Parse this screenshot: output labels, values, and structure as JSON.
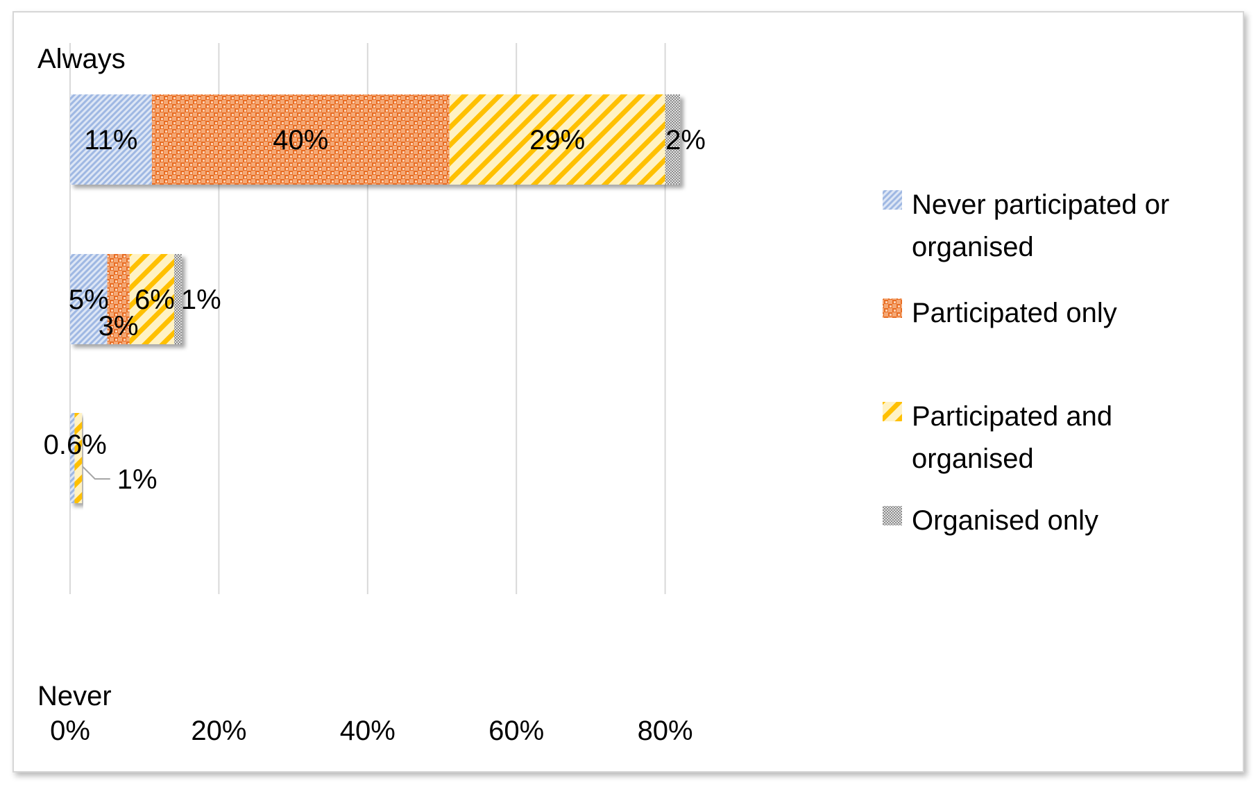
{
  "chart_data": {
    "type": "bar",
    "orientation": "horizontal",
    "stacked": true,
    "categories": [
      "Always",
      "",
      "",
      "Never"
    ],
    "category_labels": {
      "top": "Always",
      "bottom": "Never"
    },
    "series": [
      {
        "name": "Never participated or organised",
        "values": [
          11,
          5,
          0.6,
          0
        ],
        "labels": [
          "11%",
          "5%",
          "0.6%",
          ""
        ],
        "color": "#b4c7e7",
        "pattern": "diagonal-light"
      },
      {
        "name": "Participated only",
        "values": [
          40,
          3,
          0,
          0
        ],
        "labels": [
          "40%",
          "3%",
          "",
          ""
        ],
        "color": "#ed7d31",
        "pattern": "checker"
      },
      {
        "name": "Participated and organised",
        "values": [
          29,
          6,
          1,
          0
        ],
        "labels": [
          "29%",
          "6%",
          "1%",
          ""
        ],
        "color": "#ffc000",
        "pattern": "diagonal-wide"
      },
      {
        "name": "Organised only",
        "values": [
          2,
          1,
          0,
          0
        ],
        "labels": [
          "2%",
          "1%",
          "",
          ""
        ],
        "color": "#a5a5a5",
        "pattern": "grid"
      }
    ],
    "x_ticks": [
      "0%",
      "20%",
      "40%",
      "60%",
      "80%"
    ],
    "xlim": [
      0,
      90
    ],
    "grid": true,
    "legend_position": "right",
    "legend": [
      {
        "lines": [
          "Never participated or",
          "organised"
        ],
        "series": 0
      },
      {
        "lines": [
          "Participated only"
        ],
        "series": 1
      },
      {
        "lines": [
          "Participated and",
          "organised"
        ],
        "series": 2
      },
      {
        "lines": [
          "Organised only"
        ],
        "series": 3
      }
    ]
  }
}
